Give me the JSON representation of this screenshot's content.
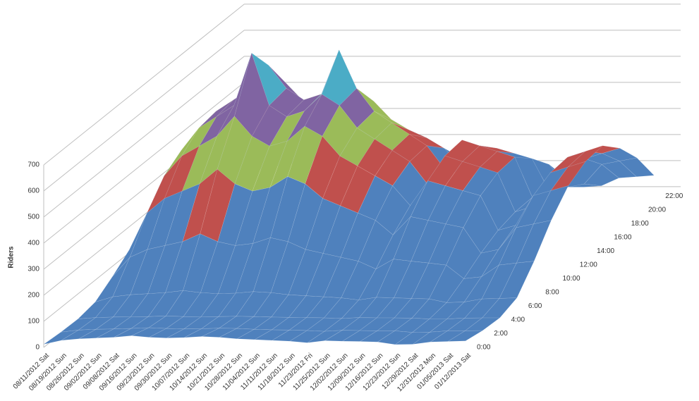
{
  "chart_data": {
    "type": "surface3d",
    "y_label": "Riders",
    "categories": [
      "08/11/2012 Sat",
      "08/19/2012 Sun",
      "08/26/2012 Sun",
      "09/02/2012 Sun",
      "09/08/2012 Sat",
      "09/16/2012 Sun",
      "09/23/2012 Sun",
      "09/30/2012 Sun",
      "10/07/2012 Sun",
      "10/14/2012 Sun",
      "10/21/2012 Sun",
      "10/28/2012 Sun",
      "11/04/2012 Sun",
      "11/11/2012 Sun",
      "11/18/2012 Sun",
      "11/23/2012 Fri",
      "11/25/2012 Sun",
      "12/02/2012 Sun",
      "12/09/2012 Sun",
      "12/16/2012 Sun",
      "12/23/2012 Sun",
      "12/29/2012 Sat",
      "12/31/2012 Mon",
      "01/05/2013 Sat",
      "01/12/2013 Sat"
    ],
    "series": [
      {
        "name": "0:00",
        "values": [
          12,
          27,
          33,
          36,
          39,
          45,
          39,
          36,
          38,
          42,
          39,
          33,
          30,
          27,
          24,
          18,
          26,
          24,
          23,
          21,
          11,
          12,
          21,
          23,
          25
        ]
      },
      {
        "name": "2:00",
        "values": [
          6,
          14,
          17,
          18,
          20,
          23,
          20,
          18,
          19,
          21,
          20,
          17,
          15,
          14,
          12,
          9,
          13,
          12,
          11,
          11,
          5,
          6,
          11,
          11,
          12
        ]
      },
      {
        "name": "4:00",
        "values": [
          4,
          9,
          11,
          12,
          13,
          15,
          13,
          12,
          13,
          14,
          13,
          11,
          10,
          9,
          8,
          6,
          9,
          8,
          8,
          7,
          4,
          4,
          7,
          8,
          8
        ]
      },
      {
        "name": "6:00",
        "values": [
          16,
          36,
          44,
          48,
          52,
          60,
          52,
          48,
          50,
          56,
          52,
          44,
          40,
          36,
          32,
          24,
          34,
          32,
          30,
          28,
          14,
          16,
          28,
          30,
          32
        ]
      },
      {
        "name": "8:00",
        "values": [
          60,
          135,
          165,
          180,
          195,
          225,
          195,
          180,
          188,
          210,
          195,
          165,
          150,
          135,
          120,
          90,
          128,
          120,
          113,
          105,
          53,
          60,
          105,
          113,
          120
        ]
      },
      {
        "name": "10:00",
        "values": [
          112,
          252,
          308,
          336,
          364,
          420,
          364,
          336,
          350,
          392,
          364,
          308,
          280,
          252,
          224,
          168,
          238,
          224,
          210,
          196,
          98,
          112,
          196,
          210,
          224
        ]
      },
      {
        "name": "12:00",
        "values": [
          152,
          342,
          418,
          456,
          494,
          570,
          494,
          456,
          475,
          532,
          494,
          418,
          380,
          342,
          304,
          228,
          323,
          304,
          285,
          266,
          133,
          152,
          266,
          285,
          304
        ]
      },
      {
        "name": "14:00",
        "values": [
          172,
          387,
          473,
          516,
          559,
          760,
          559,
          516,
          538,
          602,
          559,
          473,
          430,
          387,
          344,
          258,
          366,
          344,
          323,
          301,
          151,
          172,
          301,
          323,
          344
        ]
      },
      {
        "name": "16:00",
        "values": [
          176,
          396,
          484,
          528,
          572,
          660,
          572,
          528,
          550,
          720,
          572,
          484,
          440,
          396,
          352,
          264,
          374,
          352,
          330,
          308,
          154,
          176,
          308,
          330,
          352
        ]
      },
      {
        "name": "18:00",
        "values": [
          140,
          320,
          400,
          440,
          470,
          540,
          470,
          430,
          450,
          500,
          470,
          400,
          360,
          330,
          290,
          220,
          300,
          290,
          270,
          250,
          125,
          140,
          250,
          270,
          290
        ]
      },
      {
        "name": "20:00",
        "values": [
          100,
          225,
          275,
          300,
          325,
          375,
          325,
          300,
          313,
          350,
          325,
          275,
          250,
          225,
          200,
          150,
          213,
          200,
          188,
          175,
          88,
          100,
          175,
          188,
          200
        ]
      },
      {
        "name": "22:00",
        "values": [
          40,
          90,
          110,
          120,
          130,
          150,
          130,
          120,
          125,
          140,
          130,
          110,
          100,
          90,
          80,
          60,
          85,
          80,
          75,
          70,
          35,
          40,
          70,
          75,
          80
        ]
      }
    ],
    "ylim": [
      0,
      700
    ],
    "yticks": [
      0,
      100,
      200,
      300,
      400,
      500,
      600,
      700
    ],
    "grid": true,
    "band_colors": [
      "#4f81bd",
      "#4f81bd",
      "#4f81bd",
      "#c0504d",
      "#9bbb59",
      "#8064a2",
      "#4bacc6",
      "#f79646"
    ]
  }
}
